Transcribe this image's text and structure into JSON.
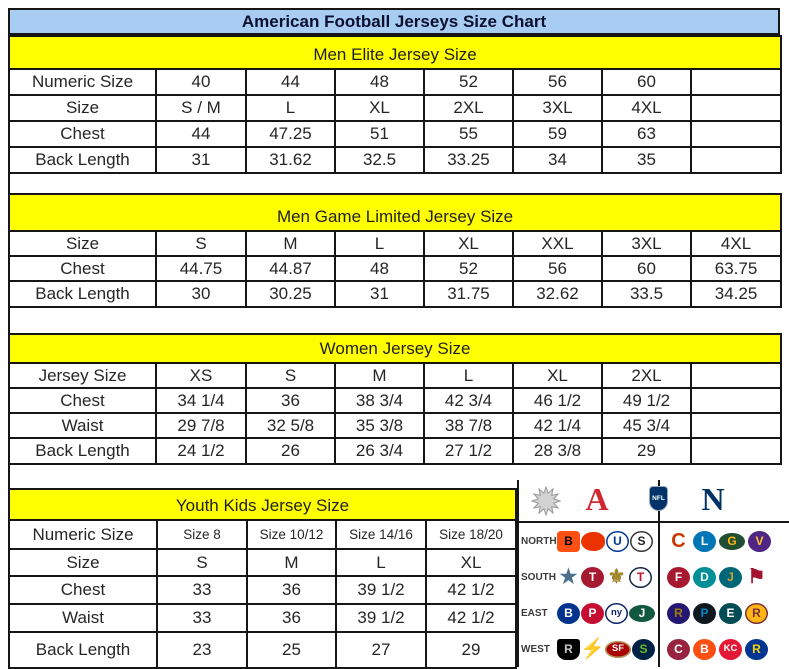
{
  "title": "American Football Jerseys Size Chart",
  "colors": {
    "title_bg": "#a9cdf2",
    "section_header_bg": "#ffff00",
    "grid_border": "#161616",
    "afc_red": "#d22730",
    "nfc_blue": "#013369"
  },
  "tables": [
    {
      "id": "men-elite",
      "header": "Men Elite Jersey Size",
      "rows": [
        {
          "label": "Numeric Size",
          "values": [
            "40",
            "44",
            "48",
            "52",
            "56",
            "60",
            ""
          ]
        },
        {
          "label": "Size",
          "values": [
            "S / M",
            "L",
            "XL",
            "2XL",
            "3XL",
            "4XL",
            ""
          ]
        },
        {
          "label": "Chest",
          "values": [
            "44",
            "47.25",
            "51",
            "55",
            "59",
            "63",
            ""
          ]
        },
        {
          "label": "Back Length",
          "values": [
            "31",
            "31.62",
            "32.5",
            "33.25",
            "34",
            "35",
            ""
          ]
        }
      ]
    },
    {
      "id": "men-game-limited",
      "header": "Men Game Limited Jersey Size",
      "rows": [
        {
          "label": "Size",
          "values": [
            "S",
            "M",
            "L",
            "XL",
            "XXL",
            "3XL",
            "4XL"
          ]
        },
        {
          "label": "Chest",
          "values": [
            "44.75",
            "44.87",
            "48",
            "52",
            "56",
            "60",
            "63.75"
          ]
        },
        {
          "label": "Back Length",
          "values": [
            "30",
            "30.25",
            "31",
            "31.75",
            "32.62",
            "33.5",
            "34.25"
          ]
        }
      ]
    },
    {
      "id": "women",
      "header": "Women Jersey Size",
      "rows": [
        {
          "label": "Jersey Size",
          "values": [
            "XS",
            "S",
            "M",
            "L",
            "XL",
            "2XL",
            ""
          ]
        },
        {
          "label": "Chest",
          "values": [
            "34 1/4",
            "36",
            "38 3/4",
            "42 3/4",
            "46 1/2",
            "49 1/2",
            ""
          ]
        },
        {
          "label": "Waist",
          "values": [
            "29 7/8",
            "32 5/8",
            "35 3/8",
            "38 7/8",
            "42 1/4",
            "45 3/4",
            ""
          ]
        },
        {
          "label": "Back Length",
          "values": [
            "24 1/2",
            "26",
            "26 3/4",
            "27 1/2",
            "28 3/8",
            "29",
            ""
          ]
        }
      ]
    },
    {
      "id": "youth-kids",
      "header": "Youth Kids Jersey Size",
      "rows": [
        {
          "label": "Numeric Size",
          "small": true,
          "values": [
            "Size 8",
            "Size 10/12",
            "Size 14/16",
            "Size 18/20"
          ]
        },
        {
          "label": "Size",
          "values": [
            "S",
            "M",
            "L",
            "XL"
          ]
        },
        {
          "label": "Chest",
          "values": [
            "33",
            "36",
            "39 1/2",
            "42 1/2"
          ]
        },
        {
          "label": "Waist",
          "values": [
            "33",
            "36",
            "39 1/2",
            "42 1/2"
          ]
        },
        {
          "label": "Back Length",
          "values": [
            "23",
            "25",
            "27",
            "29"
          ]
        }
      ]
    }
  ],
  "logo_panel": {
    "afc_letter": "A",
    "nfc_letter": "N",
    "nfl_text": "NFL",
    "icons": [
      "starburst-icon",
      "afc-logo-icon",
      "nfl-shield-icon",
      "nfc-logo-icon"
    ],
    "rows": [
      {
        "label": "NORTH",
        "afc": [
          {
            "team": "bengals",
            "glyph": "B",
            "bg": "#fb4f14",
            "fg": "#000000",
            "shape": "square"
          },
          {
            "team": "browns",
            "glyph": "",
            "bg": "#eb3300",
            "fg": "#ffffff",
            "shape": "helmet"
          },
          {
            "team": "colts",
            "glyph": "U",
            "bg": "#ffffff",
            "fg": "#003594",
            "border": "#003594"
          },
          {
            "team": "steelers",
            "glyph": "S",
            "bg": "#ffffff",
            "fg": "#222222",
            "border": "#333333"
          }
        ],
        "nfc": [
          {
            "team": "bears",
            "glyph": "C",
            "fg": "#c83803",
            "bare": true
          },
          {
            "team": "lions",
            "glyph": "L",
            "bg": "#0076b6",
            "fg": "#ffffff"
          },
          {
            "team": "packers",
            "glyph": "G",
            "bg": "#204e32",
            "fg": "#ffb612",
            "shape": "oval"
          },
          {
            "team": "vikings",
            "glyph": "V",
            "bg": "#4f2683",
            "fg": "#ffc62f"
          }
        ]
      },
      {
        "label": "SOUTH",
        "afc": [
          {
            "team": "cowboys",
            "glyph": "★",
            "fg": "#4c6f8c",
            "bare": true
          },
          {
            "team": "texans",
            "glyph": "T",
            "bg": "#a71930",
            "fg": "#ffffff"
          },
          {
            "team": "saints",
            "glyph": "⚜",
            "fg": "#a08629",
            "bare": true
          },
          {
            "team": "titans",
            "glyph": "T",
            "bg": "#ffffff",
            "fg": "#c8102e",
            "border": "#0c2340"
          }
        ],
        "nfc": [
          {
            "team": "falcons",
            "glyph": "F",
            "bg": "#a71930",
            "fg": "#ffffff"
          },
          {
            "team": "dolphins",
            "glyph": "D",
            "bg": "#008e97",
            "fg": "#ffffff"
          },
          {
            "team": "jaguars",
            "glyph": "J",
            "bg": "#006778",
            "fg": "#d7a22a"
          },
          {
            "team": "buccaneers",
            "glyph": "⚑",
            "fg": "#a2122f",
            "bare": true
          }
        ]
      },
      {
        "label": "EAST",
        "afc": [
          {
            "team": "bills",
            "glyph": "B",
            "bg": "#00338d",
            "fg": "#ffffff"
          },
          {
            "team": "patriots",
            "glyph": "P",
            "bg": "#c60c30",
            "fg": "#ffffff"
          },
          {
            "team": "giants",
            "glyph": "ny",
            "bg": "#ffffff",
            "fg": "#0b2265",
            "border": "#0b2265"
          },
          {
            "team": "jets",
            "glyph": "J",
            "bg": "#125740",
            "fg": "#ffffff",
            "shape": "oval"
          }
        ],
        "nfc": [
          {
            "team": "ravens",
            "glyph": "R",
            "bg": "#241773",
            "fg": "#9e7c0c"
          },
          {
            "team": "panthers",
            "glyph": "P",
            "bg": "#101820",
            "fg": "#0085ca"
          },
          {
            "team": "eagles",
            "glyph": "E",
            "bg": "#004c54",
            "fg": "#ffffff"
          },
          {
            "team": "redskins",
            "glyph": "R",
            "bg": "#ffb612",
            "fg": "#773141",
            "border": "#773141"
          }
        ]
      },
      {
        "label": "WEST",
        "afc": [
          {
            "team": "raiders",
            "glyph": "R",
            "bg": "#000000",
            "fg": "#c4c9cc",
            "shape": "shield"
          },
          {
            "team": "chargers",
            "glyph": "⚡",
            "fg": "#f1b10e",
            "bare": true
          },
          {
            "team": "49ers",
            "glyph": "SF",
            "bg": "#aa0000",
            "fg": "#ffffff",
            "border": "#b3995d",
            "shape": "oval"
          },
          {
            "team": "seahawks",
            "glyph": "S",
            "bg": "#002244",
            "fg": "#69be28"
          }
        ],
        "nfc": [
          {
            "team": "cardinals",
            "glyph": "C",
            "bg": "#97233f",
            "fg": "#ffffff"
          },
          {
            "team": "broncos",
            "glyph": "B",
            "bg": "#fb4f14",
            "fg": "#ffffff"
          },
          {
            "team": "chiefs",
            "glyph": "KC",
            "bg": "#e31837",
            "fg": "#ffffff"
          },
          {
            "team": "rams",
            "glyph": "R",
            "bg": "#003594",
            "fg": "#ffd100"
          }
        ]
      }
    ]
  }
}
